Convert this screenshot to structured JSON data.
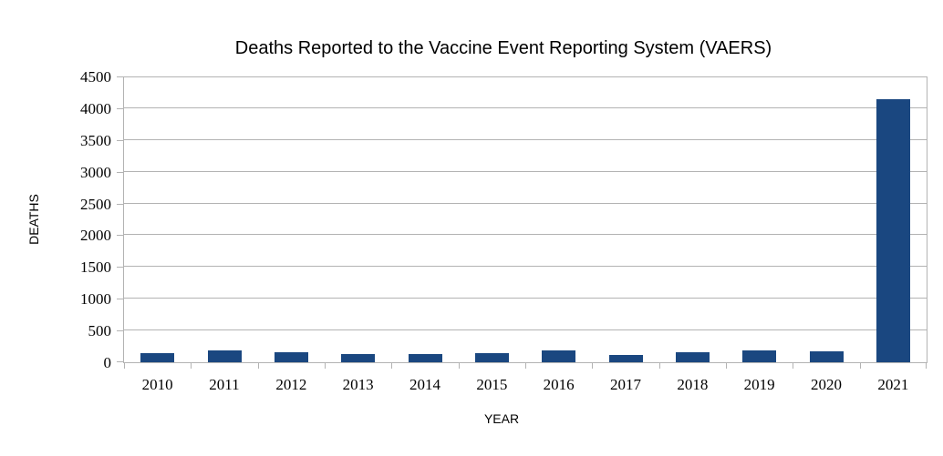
{
  "chart_data": {
    "type": "bar",
    "title": "Deaths Reported to the Vaccine Event Reporting System (VAERS)",
    "xlabel": "YEAR",
    "ylabel": "DEATHS",
    "categories": [
      "2010",
      "2011",
      "2012",
      "2013",
      "2014",
      "2015",
      "2016",
      "2017",
      "2018",
      "2019",
      "2020",
      "2021"
    ],
    "values": [
      150,
      180,
      160,
      135,
      130,
      145,
      180,
      115,
      155,
      190,
      170,
      4140
    ],
    "ylim": [
      0,
      4500
    ],
    "ytick_step": 500,
    "ytick_labels": [
      "0",
      "500",
      "1000",
      "1500",
      "2000",
      "2500",
      "3000",
      "3500",
      "4000",
      "4500"
    ],
    "grid": "horizontal",
    "legend": "none",
    "colors": {
      "bar": "#1a4780",
      "grid": "#b3b3b3",
      "axis": "#b3b3b3",
      "text": "#000000",
      "background": "#ffffff"
    }
  }
}
